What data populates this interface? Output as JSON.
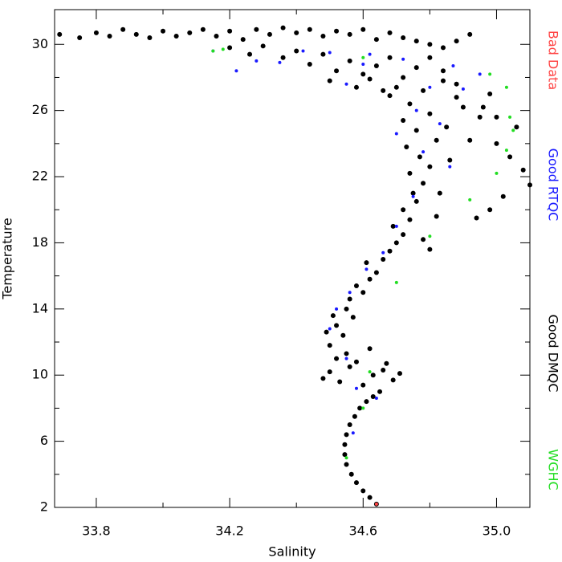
{
  "chart_data": {
    "type": "scatter",
    "xlabel": "Salinity",
    "ylabel": "Temperature",
    "xlim": [
      33.675,
      35.1
    ],
    "ylim": [
      2,
      32.1
    ],
    "xticks": [
      33.8,
      34.2,
      34.6,
      {
        "value": 35.0,
        "label": "35.0"
      }
    ],
    "xminorticks": [
      34.0,
      34.4,
      34.8
    ],
    "yticks": [
      2,
      6,
      10,
      14,
      18,
      22,
      26,
      30
    ],
    "yminorticks": [
      4,
      8,
      12,
      16,
      20,
      24,
      28
    ],
    "series": [
      {
        "name": "Good DMQC",
        "color": "#000000",
        "size": 3,
        "x": [
          34.64,
          34.62,
          34.6,
          34.58,
          34.565,
          34.55,
          34.545,
          34.545,
          34.55,
          34.56,
          34.575,
          34.59,
          34.61,
          34.63,
          34.65,
          34.48,
          34.5,
          34.53,
          34.56,
          34.6,
          34.63,
          34.66,
          34.69,
          34.71,
          34.52,
          34.55,
          34.58,
          34.62,
          34.67,
          34.5,
          34.49,
          34.52,
          34.54,
          34.51,
          34.55,
          34.57,
          34.56,
          34.6,
          34.58,
          34.62,
          34.64,
          34.61,
          34.66,
          34.68,
          34.7,
          34.72,
          34.69,
          34.74,
          34.72,
          34.76,
          34.78,
          34.8,
          34.82,
          34.75,
          34.78,
          34.74,
          34.8,
          34.77,
          34.73,
          34.82,
          34.76,
          34.72,
          34.85,
          34.8,
          34.9,
          34.95,
          34.88,
          34.74,
          34.68,
          34.7,
          34.78,
          34.84,
          34.92,
          35.0,
          35.04,
          35.08,
          35.02,
          34.98,
          34.94,
          35.1,
          35.06,
          34.86,
          34.83,
          33.69,
          33.75,
          33.8,
          33.84,
          33.88,
          33.92,
          33.96,
          34.0,
          34.04,
          34.08,
          34.12,
          34.16,
          34.2,
          34.24,
          34.28,
          34.32,
          34.36,
          34.4,
          34.44,
          34.48,
          34.52,
          34.56,
          34.6,
          34.64,
          34.68,
          34.72,
          34.76,
          34.8,
          34.84,
          34.88,
          34.92,
          34.2,
          34.26,
          34.3,
          34.36,
          34.4,
          34.44,
          34.48,
          34.52,
          34.56,
          34.6,
          34.64,
          34.68,
          34.72,
          34.76,
          34.8,
          34.84,
          34.5,
          34.58,
          34.62,
          34.66,
          34.88,
          34.96,
          34.98,
          35.0
        ],
        "values": [
          2.2,
          2.6,
          3.0,
          3.5,
          4.0,
          4.6,
          5.2,
          5.8,
          6.4,
          7.0,
          7.5,
          8.0,
          8.4,
          8.7,
          9.0,
          9.8,
          10.2,
          9.6,
          10.5,
          9.4,
          10.0,
          10.3,
          9.7,
          10.1,
          11.0,
          11.3,
          10.8,
          11.6,
          10.7,
          11.8,
          12.6,
          13.0,
          12.4,
          13.6,
          14.0,
          13.5,
          14.6,
          15.0,
          15.4,
          15.8,
          16.2,
          16.8,
          17.0,
          17.5,
          18.0,
          18.5,
          19.0,
          19.4,
          20.0,
          20.5,
          18.2,
          17.6,
          19.6,
          21.0,
          21.6,
          22.2,
          22.6,
          23.2,
          23.8,
          24.2,
          24.8,
          25.4,
          25.0,
          25.8,
          26.2,
          25.6,
          26.8,
          26.4,
          26.9,
          27.4,
          27.2,
          27.8,
          24.2,
          24.0,
          23.2,
          22.4,
          20.8,
          20.0,
          19.5,
          21.5,
          25.0,
          23.0,
          21.0,
          30.6,
          30.4,
          30.7,
          30.5,
          30.9,
          30.6,
          30.4,
          30.8,
          30.5,
          30.7,
          30.9,
          30.5,
          30.8,
          30.3,
          30.9,
          30.6,
          31.0,
          30.7,
          30.9,
          30.5,
          30.8,
          30.6,
          30.9,
          30.3,
          30.7,
          30.4,
          30.2,
          30.0,
          29.8,
          30.2,
          30.6,
          29.8,
          29.4,
          29.9,
          29.2,
          29.6,
          28.8,
          29.4,
          28.4,
          29.0,
          28.2,
          28.7,
          29.2,
          28.0,
          28.6,
          29.2,
          28.4,
          27.8,
          27.4,
          27.9,
          27.2,
          27.6,
          26.2,
          27.0,
          25.6
        ]
      },
      {
        "name": "Good RTQC",
        "color": "#1a1aff",
        "size": 2,
        "x": [
          34.15,
          34.22,
          34.28,
          34.35,
          34.42,
          34.5,
          34.55,
          34.62,
          34.72,
          34.8,
          34.87,
          34.9,
          34.95,
          34.83,
          34.78,
          34.86,
          34.75,
          34.7,
          34.66,
          34.61,
          34.56,
          34.52,
          34.5,
          34.55,
          34.58,
          34.64,
          34.57,
          34.7,
          34.76,
          34.6
        ],
        "values": [
          29.6,
          28.4,
          29.0,
          28.9,
          29.6,
          29.5,
          27.6,
          29.4,
          29.1,
          27.4,
          28.7,
          27.3,
          28.2,
          25.2,
          23.5,
          22.6,
          20.8,
          19.0,
          17.4,
          16.4,
          15.0,
          14.0,
          12.8,
          11.0,
          9.2,
          8.6,
          6.5,
          24.6,
          26.0,
          28.8
        ]
      },
      {
        "name": "WGHC",
        "color": "#22dd22",
        "size": 2,
        "x": [
          34.15,
          34.18,
          34.6,
          34.98,
          35.03,
          35.04,
          35.05,
          35.03,
          35.0,
          34.92,
          34.8,
          34.7,
          34.62,
          34.6,
          34.55
        ],
        "values": [
          29.6,
          29.7,
          29.2,
          28.2,
          27.4,
          25.6,
          24.8,
          23.6,
          22.2,
          20.6,
          18.4,
          15.6,
          10.2,
          8.0,
          5.0
        ]
      },
      {
        "name": "Bad Data",
        "color": "#ff4444",
        "size": 2,
        "x": [
          34.64
        ],
        "values": [
          2.2
        ]
      }
    ],
    "legend": "right"
  }
}
